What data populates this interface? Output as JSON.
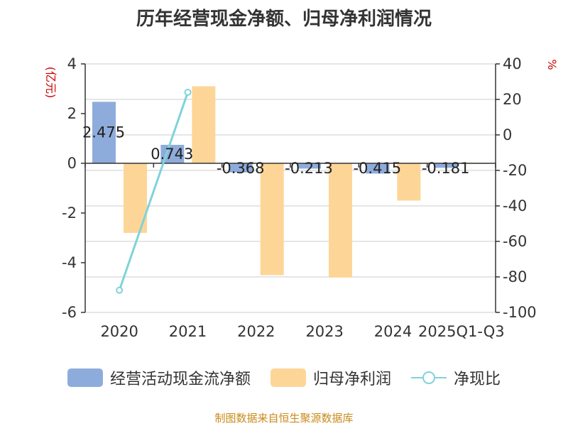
{
  "page": {
    "title": "历年经营现金净额、归母净利润情况",
    "source": "制图数据来自恒生聚源数据库"
  },
  "chart_data": {
    "type": "bar",
    "title": "历年经营现金净额、归母净利润情况",
    "categories": [
      "2020",
      "2021",
      "2022",
      "2023",
      "2024",
      "2025Q1-Q3"
    ],
    "left_axis": {
      "label": "(亿元)",
      "range": [
        -6,
        4
      ],
      "ticks": [
        4,
        2,
        0,
        -2,
        -4,
        -6
      ]
    },
    "right_axis": {
      "label": "%",
      "range": [
        -100,
        40
      ],
      "ticks": [
        40,
        20,
        0,
        -20,
        -40,
        -60,
        -80,
        -100
      ]
    },
    "series": [
      {
        "name": "经营活动现金流净额",
        "type": "bar",
        "axis": "left",
        "values": [
          2.475,
          0.743,
          -0.368,
          -0.213,
          -0.415,
          -0.181
        ],
        "labels": [
          "2.475",
          "0.743",
          "-0.368",
          "-0.213",
          "-0.415",
          "-0.181"
        ]
      },
      {
        "name": "归母净利润",
        "type": "bar",
        "axis": "left",
        "values": [
          -2.8,
          3.1,
          -4.5,
          -4.6,
          -1.5,
          -0.02
        ]
      },
      {
        "name": "净现比",
        "type": "line",
        "axis": "right",
        "values": [
          -87.5,
          24.0,
          null,
          null,
          null,
          null
        ]
      }
    ],
    "legend_position": "bottom",
    "grid": true
  },
  "colors": {
    "cash_flow": "#8eacdb",
    "net_profit": "#fdd697",
    "ratio_line": "#7fd3d9",
    "axis_label_red": "#cc0000",
    "source_text": "#c98a1a",
    "grid": "#cccccc",
    "text": "#333333"
  }
}
